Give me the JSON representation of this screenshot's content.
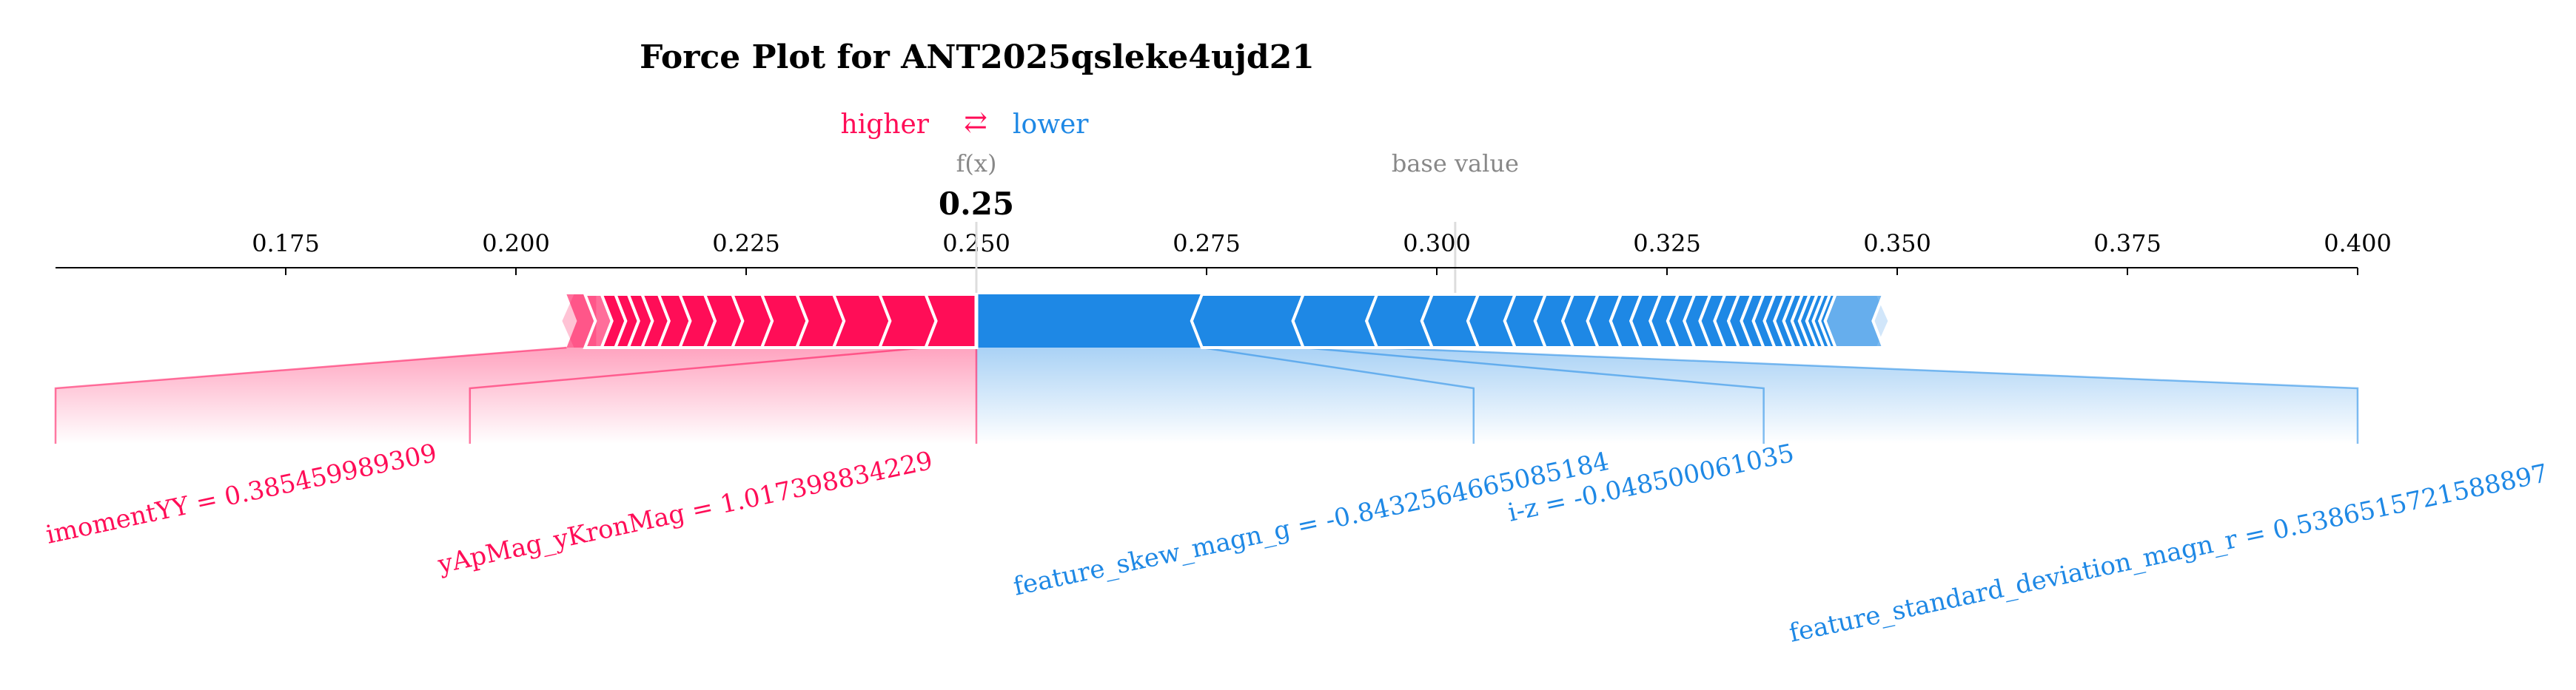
{
  "chart_data": {
    "type": "force",
    "title": "Force Plot for ANT2025qsleke4ujd21",
    "legend": {
      "higher_label": "higher",
      "arrow_symbol": "⇄",
      "lower_label": "lower"
    },
    "fx_label": "f(x)",
    "fx_value": 0.25,
    "fx_value_label": "0.25",
    "base_value_label": "base value",
    "base_value": 0.302,
    "xlim": [
      0.15,
      0.4
    ],
    "ticks": [
      {
        "value": 0.175,
        "label": "0.175"
      },
      {
        "value": 0.2,
        "label": "0.200"
      },
      {
        "value": 0.225,
        "label": "0.225"
      },
      {
        "value": 0.25,
        "label": "0.250"
      },
      {
        "value": 0.275,
        "label": "0.275"
      },
      {
        "value": 0.3,
        "label": "0.300"
      },
      {
        "value": 0.325,
        "label": "0.325"
      },
      {
        "value": 0.35,
        "label": "0.350"
      },
      {
        "value": 0.375,
        "label": "0.375"
      },
      {
        "value": 0.4,
        "label": "0.400"
      }
    ],
    "bar_range": [
      0.2055,
      0.3485
    ],
    "positive_segments": [
      0.2055,
      0.2075,
      0.2093,
      0.2108,
      0.2122,
      0.2137,
      0.2155,
      0.2178,
      0.2205,
      0.2235,
      0.2267,
      0.2305,
      0.2345,
      0.2395,
      0.2445,
      0.25
    ],
    "negative_segments": [
      0.25,
      0.2745,
      0.2855,
      0.2935,
      0.2995,
      0.3045,
      0.3085,
      0.3118,
      0.3148,
      0.3175,
      0.32,
      0.3222,
      0.3243,
      0.3262,
      0.328,
      0.3297,
      0.3313,
      0.3328,
      0.3342,
      0.3355,
      0.3367,
      0.3378,
      0.3388,
      0.3397,
      0.3405,
      0.3413,
      0.342,
      0.3427,
      0.3433,
      0.3485
    ],
    "colors": {
      "positive": "#ff0d57",
      "negative": "#1e88e5",
      "positive_light": "#ffc3d5",
      "negative_light": "#d1e6fa",
      "gray": "#888888"
    },
    "positive_features": [
      {
        "label": "imomentYY = 0.385459989309",
        "start": 0.2055,
        "end": 0.2445,
        "label_position": 0.15
      },
      {
        "label": "yApMag_yKronMag = 1.017398834229",
        "start": 0.2445,
        "end": 0.25,
        "label_position": 0.195
      }
    ],
    "negative_features": [
      {
        "label": "feature_skew_magn_g = -0.8432564665085184",
        "start": 0.25,
        "end": 0.2745,
        "label_position": 0.304
      },
      {
        "label": "i-z = -0.048500061035",
        "start": 0.2745,
        "end": 0.2855,
        "label_position": 0.3355
      },
      {
        "label": "feature_standard_deviation_magn_r = 0.5386515721588897",
        "start": 0.2855,
        "end": 0.2935,
        "label_position": 0.4
      }
    ]
  }
}
